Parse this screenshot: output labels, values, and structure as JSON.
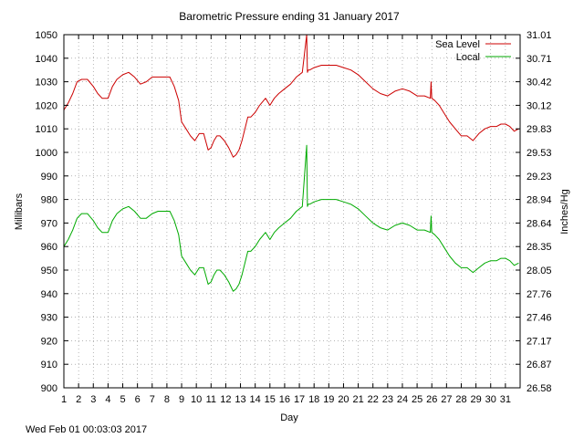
{
  "chart_data": {
    "type": "line",
    "title": "Barometric Pressure ending 31 January 2017",
    "xlabel": "Day",
    "ylabel_left": "Millibars",
    "ylabel_right": "Inches/Hg",
    "footer": "Wed Feb 01 00:03:03 2017",
    "xlim": [
      1,
      32
    ],
    "ylim": [
      900,
      1050
    ],
    "y2lim": [
      26.58,
      31.01
    ],
    "grid": true,
    "legend_position": "top-right",
    "x_ticks": [
      1,
      2,
      3,
      4,
      5,
      6,
      7,
      8,
      9,
      10,
      11,
      12,
      13,
      14,
      15,
      16,
      17,
      18,
      19,
      20,
      21,
      22,
      23,
      24,
      25,
      26,
      27,
      28,
      29,
      30,
      31
    ],
    "x_tick_labels": [
      "1",
      "2",
      "3",
      "4",
      "5",
      "6",
      "7",
      "8",
      "9",
      "10",
      "11",
      "12",
      "13",
      "14",
      "15",
      "16",
      "17",
      "18",
      "19",
      "20",
      "21",
      "22",
      "23",
      "24",
      "25",
      "26",
      "27",
      "28",
      "29",
      "30",
      "31"
    ],
    "y_ticks": [
      900,
      910,
      920,
      930,
      940,
      950,
      960,
      970,
      980,
      990,
      1000,
      1010,
      1020,
      1030,
      1040,
      1050
    ],
    "y_tick_labels": [
      "900",
      "910",
      "920",
      "930",
      "940",
      "950",
      "960",
      "970",
      "980",
      "990",
      "1000",
      "1010",
      "1020",
      "1030",
      "1040",
      "1050"
    ],
    "y2_tick_labels": [
      "26.58",
      "26.87",
      "27.17",
      "27.46",
      "27.76",
      "28.05",
      "28.35",
      "28.64",
      "28.94",
      "29.23",
      "29.53",
      "29.83",
      "30.12",
      "30.42",
      "30.71",
      "31.01"
    ],
    "series": [
      {
        "name": "Sea Level",
        "color": "#cc0000",
        "x": [
          1.0,
          1.3,
          1.6,
          1.9,
          2.2,
          2.6,
          3.0,
          3.3,
          3.6,
          4.0,
          4.3,
          4.6,
          5.0,
          5.4,
          5.8,
          6.2,
          6.6,
          7.0,
          7.4,
          7.8,
          8.2,
          8.5,
          8.8,
          9.0,
          9.3,
          9.6,
          9.9,
          10.2,
          10.5,
          10.8,
          11.0,
          11.2,
          11.4,
          11.6,
          11.9,
          12.2,
          12.5,
          12.7,
          12.9,
          13.1,
          13.3,
          13.5,
          13.7,
          14.0,
          14.3,
          14.7,
          15.0,
          15.3,
          15.6,
          16.0,
          16.4,
          16.8,
          17.2,
          17.5,
          17.55,
          17.6,
          17.7,
          18.0,
          18.5,
          19.0,
          19.5,
          20.0,
          20.5,
          21.0,
          21.5,
          22.0,
          22.5,
          23.0,
          23.5,
          24.0,
          24.5,
          25.0,
          25.5,
          25.9,
          25.95,
          26.0,
          26.2,
          26.5,
          26.8,
          27.2,
          27.6,
          28.0,
          28.4,
          28.8,
          29.2,
          29.6,
          30.0,
          30.4,
          30.7,
          31.0,
          31.3,
          31.6,
          31.9
        ],
        "values": [
          1018,
          1021,
          1025,
          1030,
          1031,
          1031,
          1028,
          1025,
          1023,
          1023,
          1028,
          1031,
          1033,
          1034,
          1032,
          1029,
          1030,
          1032,
          1032,
          1032,
          1032,
          1028,
          1022,
          1013,
          1010,
          1007,
          1005,
          1008,
          1008,
          1001,
          1002,
          1005,
          1007,
          1007,
          1005,
          1002,
          998,
          999,
          1001,
          1005,
          1010,
          1015,
          1015,
          1017,
          1020,
          1023,
          1020,
          1023,
          1025,
          1027,
          1029,
          1032,
          1034,
          1050,
          1034,
          1035,
          1035,
          1036,
          1037,
          1037,
          1037,
          1036,
          1035,
          1033,
          1030,
          1027,
          1025,
          1024,
          1026,
          1027,
          1026,
          1024,
          1024,
          1023,
          1030,
          1023,
          1022,
          1020,
          1017,
          1013,
          1010,
          1007,
          1007,
          1005,
          1008,
          1010,
          1011,
          1011,
          1012,
          1012,
          1011,
          1009,
          1010
        ]
      },
      {
        "name": "Local",
        "color": "#00aa00",
        "x": [
          1.0,
          1.3,
          1.6,
          1.9,
          2.2,
          2.6,
          3.0,
          3.3,
          3.6,
          4.0,
          4.3,
          4.6,
          5.0,
          5.4,
          5.8,
          6.2,
          6.6,
          7.0,
          7.4,
          7.8,
          8.2,
          8.5,
          8.8,
          9.0,
          9.3,
          9.6,
          9.9,
          10.2,
          10.5,
          10.8,
          11.0,
          11.2,
          11.4,
          11.6,
          11.9,
          12.2,
          12.5,
          12.7,
          12.9,
          13.1,
          13.3,
          13.5,
          13.7,
          14.0,
          14.3,
          14.7,
          15.0,
          15.3,
          15.6,
          16.0,
          16.4,
          16.8,
          17.2,
          17.5,
          17.55,
          17.6,
          17.7,
          18.0,
          18.5,
          19.0,
          19.5,
          20.0,
          20.5,
          21.0,
          21.5,
          22.0,
          22.5,
          23.0,
          23.5,
          24.0,
          24.5,
          25.0,
          25.5,
          25.9,
          25.95,
          26.0,
          26.2,
          26.5,
          26.8,
          27.2,
          27.6,
          28.0,
          28.4,
          28.8,
          29.2,
          29.6,
          30.0,
          30.4,
          30.7,
          31.0,
          31.3,
          31.6,
          31.9
        ],
        "values": [
          960,
          963,
          967,
          972,
          974,
          974,
          971,
          968,
          966,
          966,
          971,
          974,
          976,
          977,
          975,
          972,
          972,
          974,
          975,
          975,
          975,
          971,
          965,
          956,
          953,
          950,
          948,
          951,
          951,
          944,
          945,
          948,
          950,
          950,
          948,
          945,
          941,
          942,
          944,
          948,
          953,
          958,
          958,
          960,
          963,
          966,
          963,
          966,
          968,
          970,
          972,
          975,
          977,
          1003,
          977,
          978,
          978,
          979,
          980,
          980,
          980,
          979,
          978,
          976,
          973,
          970,
          968,
          967,
          969,
          970,
          969,
          967,
          967,
          966,
          973,
          966,
          965,
          963,
          960,
          956,
          953,
          951,
          951,
          949,
          951,
          953,
          954,
          954,
          955,
          955,
          954,
          952,
          953
        ]
      }
    ]
  }
}
